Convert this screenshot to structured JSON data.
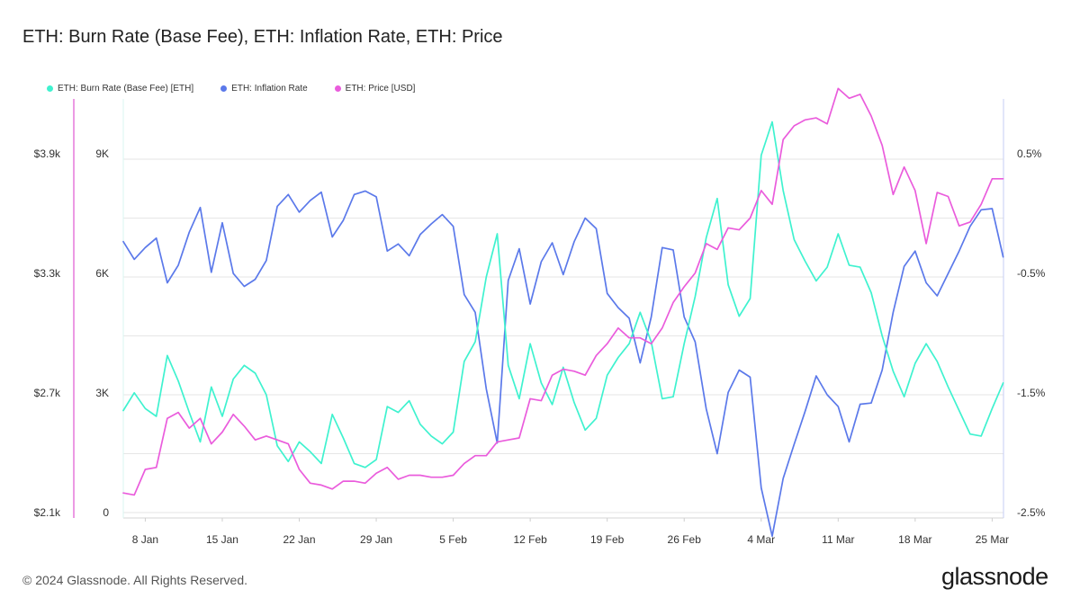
{
  "title": "ETH: Burn Rate (Base Fee), ETH: Inflation Rate, ETH: Price",
  "footer": "© 2024 Glassnode. All Rights Reserved.",
  "brand": "glassnode",
  "colors": {
    "burn": "#3ff2cf",
    "inflation": "#5b79ea",
    "price": "#ea5cdc",
    "grid": "#e6e6e6",
    "price_axis": "#e057d2",
    "right_axis": "#c5cdf4"
  },
  "chart_data": {
    "type": "line",
    "legend": [
      "ETH: Burn Rate (Base Fee) [ETH]",
      "ETH: Inflation Rate",
      "ETH: Price [USD]"
    ],
    "x_start": "2024-01-06",
    "x_ticks": [
      "8 Jan",
      "15 Jan",
      "22 Jan",
      "29 Jan",
      "5 Feb",
      "12 Feb",
      "19 Feb",
      "26 Feb",
      "4 Mar",
      "11 Mar",
      "18 Mar",
      "25 Mar"
    ],
    "y_price_ticks": [
      "$2.1k",
      "$2.7k",
      "$3.3k",
      "$3.9k"
    ],
    "y_burn_ticks": [
      "0",
      "3K",
      "6K",
      "9K"
    ],
    "y_inflation_ticks": [
      "-2.5%",
      "-1.5%",
      "-0.5%",
      "0.5%"
    ],
    "y_price_range": [
      2100,
      3900
    ],
    "y_burn_range": [
      0,
      9000
    ],
    "y_inflation_range": [
      -2.5,
      0.5
    ],
    "grid": true,
    "legend_position": "top-left",
    "series": [
      {
        "name": "ETH: Burn Rate (Base Fee) [ETH]",
        "axis": "burn",
        "color": "#3ff2cf",
        "values": [
          2600,
          3050,
          2650,
          2450,
          4000,
          3350,
          2550,
          1800,
          3200,
          2450,
          3400,
          3750,
          3550,
          3000,
          1700,
          1300,
          1800,
          1550,
          1250,
          2500,
          1900,
          1250,
          1150,
          1350,
          2700,
          2550,
          2850,
          2250,
          1950,
          1750,
          2050,
          3850,
          4350,
          6000,
          7100,
          3750,
          2900,
          4300,
          3300,
          2750,
          3700,
          2800,
          2100,
          2400,
          3500,
          3950,
          4300,
          5100,
          4350,
          2900,
          2950,
          4300,
          5500,
          7000,
          8000,
          5800,
          5000,
          5450,
          9100,
          9950,
          8200,
          6950,
          6400,
          5900,
          6250,
          7100,
          6300,
          6250,
          5600,
          4500,
          3600,
          2950,
          3800,
          4300,
          3850,
          3200,
          2600,
          2000,
          1950,
          2650,
          3300
        ]
      },
      {
        "name": "ETH: Inflation Rate",
        "axis": "inflation",
        "color": "#5b79ea",
        "values": [
          -0.2,
          -0.35,
          -0.25,
          -0.17,
          -0.55,
          -0.4,
          -0.12,
          0.09,
          -0.46,
          -0.04,
          -0.47,
          -0.58,
          -0.52,
          -0.36,
          0.1,
          0.2,
          0.05,
          0.15,
          0.22,
          -0.16,
          -0.02,
          0.2,
          0.23,
          0.18,
          -0.28,
          -0.22,
          -0.32,
          -0.14,
          -0.05,
          0.03,
          -0.07,
          -0.65,
          -0.8,
          -1.45,
          -1.91,
          -0.53,
          -0.26,
          -0.73,
          -0.37,
          -0.21,
          -0.48,
          -0.2,
          0.0,
          -0.09,
          -0.64,
          -0.76,
          -0.85,
          -1.23,
          -0.84,
          -0.25,
          -0.27,
          -0.84,
          -1.05,
          -1.62,
          -2.0,
          -1.48,
          -1.29,
          -1.35,
          -2.29,
          -2.7,
          -2.21,
          -1.92,
          -1.64,
          -1.34,
          -1.5,
          -1.6,
          -1.9,
          -1.58,
          -1.57,
          -1.29,
          -0.8,
          -0.41,
          -0.28,
          -0.55,
          -0.66,
          -0.47,
          -0.28,
          -0.07,
          0.07,
          0.08,
          -0.33
        ]
      },
      {
        "name": "ETH: Price [USD]",
        "axis": "price",
        "color": "#ea5cdc",
        "values": [
          2200,
          2190,
          2320,
          2330,
          2580,
          2610,
          2530,
          2580,
          2450,
          2510,
          2600,
          2540,
          2470,
          2490,
          2470,
          2450,
          2320,
          2250,
          2240,
          2220,
          2260,
          2260,
          2250,
          2300,
          2330,
          2270,
          2290,
          2290,
          2280,
          2280,
          2290,
          2350,
          2390,
          2390,
          2460,
          2470,
          2480,
          2680,
          2670,
          2800,
          2830,
          2820,
          2800,
          2900,
          2960,
          3040,
          2990,
          2990,
          2960,
          3040,
          3170,
          3250,
          3320,
          3470,
          3440,
          3550,
          3540,
          3600,
          3740,
          3670,
          4000,
          4070,
          4100,
          4110,
          4080,
          4260,
          4210,
          4230,
          4120,
          3970,
          3720,
          3860,
          3740,
          3470,
          3730,
          3710,
          3560,
          3580,
          3670,
          3800,
          3800
        ]
      }
    ]
  }
}
